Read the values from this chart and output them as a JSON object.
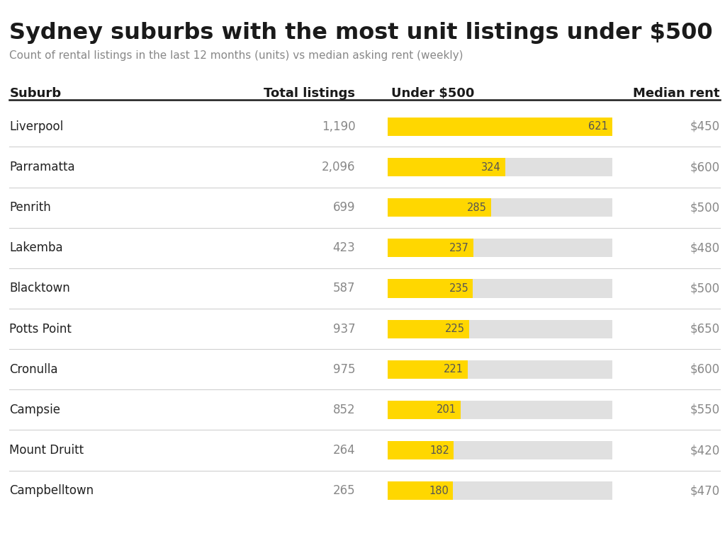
{
  "title": "Sydney suburbs with the most unit listings under $500",
  "subtitle": "Count of rental listings in the last 12 months (units) vs median asking rent (weekly)",
  "headers": [
    "Suburb",
    "Total listings",
    "Under $500",
    "Median rent"
  ],
  "suburbs": [
    "Liverpool",
    "Parramatta",
    "Penrith",
    "Lakemba",
    "Blacktown",
    "Potts Point",
    "Cronulla",
    "Campsie",
    "Mount Druitt",
    "Campbelltown"
  ],
  "total_listings_str": [
    "1,190",
    "2,096",
    "699",
    "423",
    "587",
    "937",
    "975",
    "852",
    "264",
    "265"
  ],
  "under_500": [
    621,
    324,
    285,
    237,
    235,
    225,
    221,
    201,
    182,
    180
  ],
  "median_rent": [
    "$450",
    "$600",
    "$500",
    "$480",
    "$500",
    "$650",
    "$600",
    "$550",
    "$420",
    "$470"
  ],
  "bar_max": 621,
  "yellow_color": "#FFD700",
  "gray_color": "#E0E0E0",
  "bg_color": "#FFFFFF",
  "title_color": "#1a1a1a",
  "subtitle_color": "#888888",
  "header_color": "#1a1a1a",
  "suburb_color": "#222222",
  "value_color": "#888888",
  "bar_text_color": "#555555",
  "separator_color": "#D0D0D0",
  "header_sep_color": "#1a1a1a",
  "title_fontsize": 23,
  "subtitle_fontsize": 11,
  "header_fontsize": 13,
  "row_fontsize": 12
}
